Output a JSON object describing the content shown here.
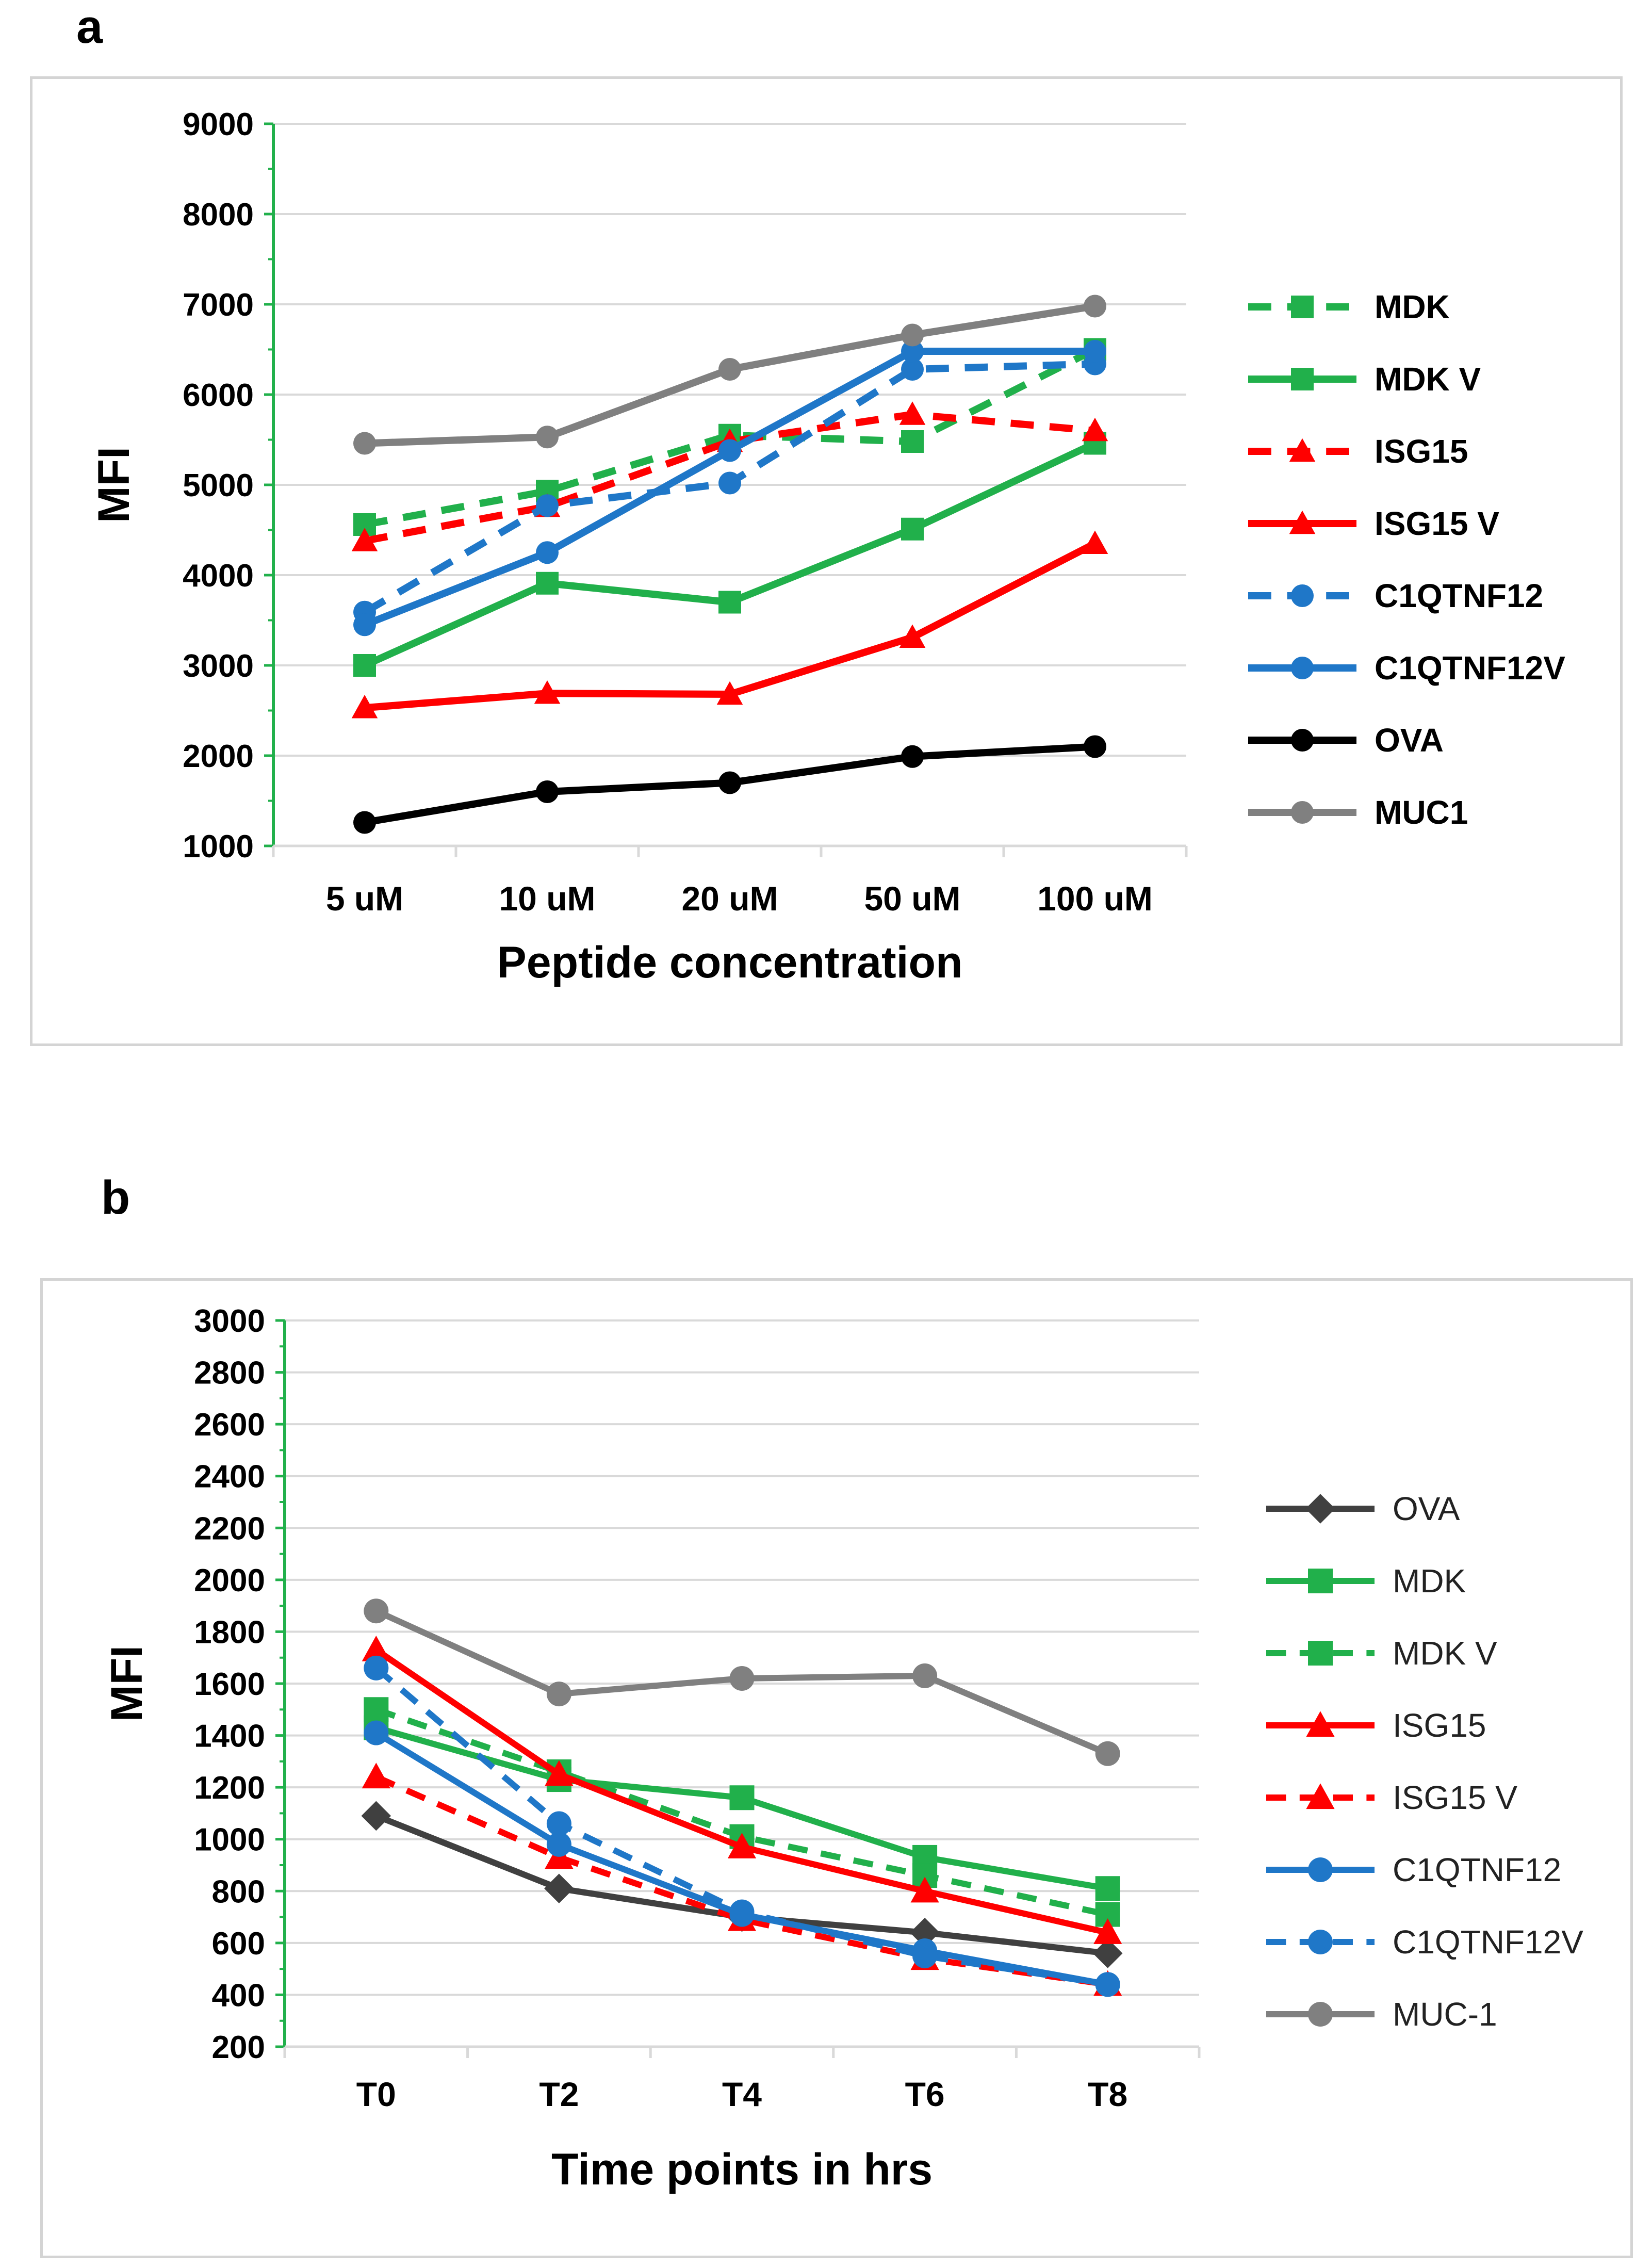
{
  "panels": [
    {
      "letter": "a",
      "chart_data": {
        "type": "line",
        "title": "",
        "xlabel": "Peptide concentration",
        "ylabel": "MFI",
        "categories": [
          "5 uM",
          "10 uM",
          "20 uM",
          "50 uM",
          "100 uM"
        ],
        "ylim": [
          1000,
          9000
        ],
        "ytick_step": 1000,
        "ytick_labels": [
          "1000",
          "2000",
          "3000",
          "4000",
          "5000",
          "6000",
          "7000",
          "8000",
          "9000"
        ],
        "grid": true,
        "legend_position": "right",
        "legend_bold": true,
        "series": [
          {
            "name": "MDK",
            "values": [
              4560,
              4930,
              5550,
              5480,
              6500
            ],
            "color": "#21b04b",
            "dash": "dash",
            "marker": "square"
          },
          {
            "name": "MDK V",
            "values": [
              3000,
              3910,
              3700,
              4510,
              5460
            ],
            "color": "#21b04b",
            "dash": "solid",
            "marker": "square"
          },
          {
            "name": "ISG15",
            "values": [
              4380,
              4760,
              5480,
              5780,
              5600
            ],
            "color": "#ff0000",
            "dash": "dash",
            "marker": "triangle"
          },
          {
            "name": "ISG15 V",
            "values": [
              2530,
              2690,
              2680,
              3310,
              4350
            ],
            "color": "#ff0000",
            "dash": "solid",
            "marker": "triangle"
          },
          {
            "name": "C1QTNF12",
            "values": [
              3590,
              4770,
              5020,
              6280,
              6340
            ],
            "color": "#1f77c8",
            "dash": "dash",
            "marker": "circle"
          },
          {
            "name": "C1QTNF12V",
            "values": [
              3450,
              4250,
              5380,
              6480,
              6480
            ],
            "color": "#1f77c8",
            "dash": "solid",
            "marker": "circle"
          },
          {
            "name": "OVA",
            "values": [
              1260,
              1600,
              1700,
              1990,
              2100
            ],
            "color": "#000000",
            "dash": "solid",
            "marker": "circle"
          },
          {
            "name": "MUC1",
            "values": [
              5460,
              5530,
              6280,
              6660,
              6980
            ],
            "color": "#808080",
            "dash": "solid",
            "marker": "circle"
          }
        ]
      }
    },
    {
      "letter": "b",
      "chart_data": {
        "type": "line",
        "title": "",
        "xlabel": "Time points in hrs",
        "ylabel": "MFI",
        "categories": [
          "T0",
          "T2",
          "T4",
          "T6",
          "T8"
        ],
        "ylim": [
          200,
          3000
        ],
        "ytick_step": 200,
        "ytick_labels": [
          "200",
          "400",
          "600",
          "800",
          "1000",
          "1200",
          "1400",
          "1600",
          "1800",
          "2000",
          "2200",
          "2400",
          "2600",
          "2800",
          "3000"
        ],
        "grid": true,
        "legend_position": "right",
        "legend_bold": false,
        "series": [
          {
            "name": "OVA",
            "values": [
              1090,
              810,
              700,
              640,
              560
            ],
            "color": "#404040",
            "dash": "solid",
            "marker": "diamond"
          },
          {
            "name": "MDK",
            "values": [
              1430,
              1230,
              1160,
              930,
              810
            ],
            "color": "#21b04b",
            "dash": "solid",
            "marker": "square"
          },
          {
            "name": "MDK V",
            "values": [
              1500,
              1260,
              1010,
              860,
              710
            ],
            "color": "#21b04b",
            "dash": "dash",
            "marker": "square"
          },
          {
            "name": "ISG15",
            "values": [
              1730,
              1250,
              970,
              800,
              640
            ],
            "color": "#ff0000",
            "dash": "solid",
            "marker": "triangle"
          },
          {
            "name": "ISG15 V",
            "values": [
              1240,
              930,
              690,
              540,
              440
            ],
            "color": "#ff0000",
            "dash": "dash",
            "marker": "triangle"
          },
          {
            "name": "C1QTNF12",
            "values": [
              1410,
              980,
              710,
              570,
              440
            ],
            "color": "#1f77c8",
            "dash": "solid",
            "marker": "circle"
          },
          {
            "name": "C1QTNF12V",
            "values": [
              1660,
              1060,
              720,
              550,
              440
            ],
            "color": "#1f77c8",
            "dash": "dash",
            "marker": "circle"
          },
          {
            "name": "MUC-1",
            "values": [
              1880,
              1560,
              1620,
              1630,
              1330
            ],
            "color": "#808080",
            "dash": "solid",
            "marker": "circle"
          }
        ]
      }
    }
  ]
}
